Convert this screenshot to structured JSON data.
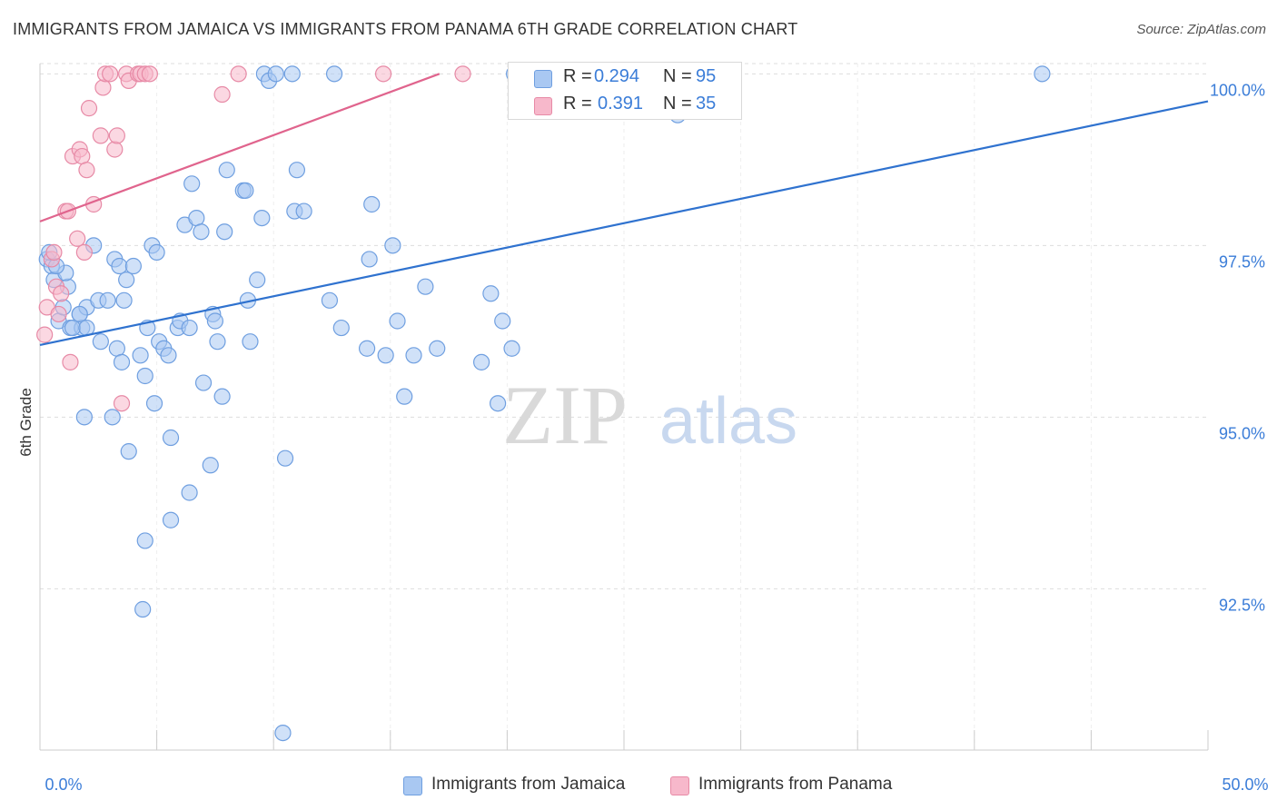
{
  "header": {
    "title": "IMMIGRANTS FROM JAMAICA VS IMMIGRANTS FROM PANAMA 6TH GRADE CORRELATION CHART",
    "source": "Source: ZipAtlas.com"
  },
  "watermark": {
    "zip": "ZIP",
    "atlas": "atlas"
  },
  "legend": {
    "jamaica": {
      "r_label": "R =",
      "r_value": "0.294",
      "n_label": "N =",
      "n_value": "95"
    },
    "panama": {
      "r_label": "R =",
      "r_value": "0.391",
      "n_label": "N =",
      "n_value": "35"
    }
  },
  "bottom_legend": {
    "jamaica": "Immigrants from Jamaica",
    "panama": "Immigrants from Panama"
  },
  "colors": {
    "jamaica_fill": "#a9c8f2",
    "jamaica_stroke": "#6f9fe0",
    "jamaica_line": "#2f72cf",
    "panama_fill": "#f7b8cb",
    "panama_stroke": "#e78aa6",
    "panama_line": "#e0648d",
    "tick_label": "#3b7dd8",
    "grid": "#dddddd"
  },
  "chart_data": {
    "type": "scatter",
    "title": "IMMIGRANTS FROM JAMAICA VS IMMIGRANTS FROM PANAMA 6TH GRADE CORRELATION CHART",
    "xlabel": "",
    "ylabel": "6th Grade",
    "xlim": [
      0,
      50
    ],
    "ylim": [
      90.15,
      100.15
    ],
    "x_tick_labels": [
      "0.0%",
      "50.0%"
    ],
    "y_ticks": [
      92.5,
      95.0,
      97.5,
      100.0
    ],
    "y_tick_labels": [
      "92.5%",
      "95.0%",
      "97.5%",
      "100.0%"
    ],
    "series": [
      {
        "name": "Immigrants from Jamaica",
        "r": 0.294,
        "n": 95,
        "trend": {
          "x": [
            0,
            50
          ],
          "y": [
            96.05,
            99.6
          ]
        },
        "points": [
          [
            0.3,
            97.3
          ],
          [
            0.5,
            97.2
          ],
          [
            0.6,
            97.0
          ],
          [
            0.8,
            96.4
          ],
          [
            1.2,
            96.9
          ],
          [
            1.3,
            96.3
          ],
          [
            1.0,
            96.6
          ],
          [
            1.7,
            96.5
          ],
          [
            1.8,
            96.3
          ],
          [
            2.0,
            96.6
          ],
          [
            2.3,
            97.5
          ],
          [
            2.5,
            96.7
          ],
          [
            2.6,
            96.1
          ],
          [
            2.9,
            96.7
          ],
          [
            3.2,
            97.3
          ],
          [
            3.3,
            96.0
          ],
          [
            3.4,
            97.2
          ],
          [
            3.6,
            96.7
          ],
          [
            3.7,
            97.0
          ],
          [
            4.0,
            97.2
          ],
          [
            4.3,
            95.9
          ],
          [
            4.5,
            95.6
          ],
          [
            4.6,
            96.3
          ],
          [
            4.8,
            97.5
          ],
          [
            4.9,
            95.2
          ],
          [
            5.0,
            97.4
          ],
          [
            5.1,
            96.1
          ],
          [
            5.3,
            96.0
          ],
          [
            5.5,
            95.9
          ],
          [
            5.6,
            94.7
          ],
          [
            5.9,
            96.3
          ],
          [
            6.0,
            96.4
          ],
          [
            6.2,
            97.8
          ],
          [
            6.4,
            96.3
          ],
          [
            6.5,
            98.4
          ],
          [
            6.7,
            97.9
          ],
          [
            6.9,
            97.7
          ],
          [
            7.0,
            95.5
          ],
          [
            7.4,
            96.5
          ],
          [
            7.5,
            96.4
          ],
          [
            7.6,
            96.1
          ],
          [
            7.8,
            95.3
          ],
          [
            7.9,
            97.7
          ],
          [
            8.0,
            98.6
          ],
          [
            8.7,
            98.3
          ],
          [
            8.8,
            98.3
          ],
          [
            8.9,
            96.7
          ],
          [
            9.0,
            96.1
          ],
          [
            9.3,
            97.0
          ],
          [
            9.5,
            97.9
          ],
          [
            9.6,
            100.0
          ],
          [
            9.8,
            99.9
          ],
          [
            10.1,
            100.0
          ],
          [
            10.5,
            94.4
          ],
          [
            10.8,
            100.0
          ],
          [
            10.9,
            98.0
          ],
          [
            11.0,
            98.6
          ],
          [
            11.3,
            98.0
          ],
          [
            12.4,
            96.7
          ],
          [
            12.6,
            100.0
          ],
          [
            12.9,
            96.3
          ],
          [
            14.0,
            96.0
          ],
          [
            14.1,
            97.3
          ],
          [
            14.2,
            98.1
          ],
          [
            14.8,
            95.9
          ],
          [
            15.1,
            97.5
          ],
          [
            15.3,
            96.4
          ],
          [
            15.6,
            95.3
          ],
          [
            16.0,
            95.9
          ],
          [
            16.5,
            96.9
          ],
          [
            17.0,
            96.0
          ],
          [
            18.9,
            95.8
          ],
          [
            19.3,
            96.8
          ],
          [
            19.6,
            95.2
          ],
          [
            19.8,
            96.4
          ],
          [
            20.2,
            96.0
          ],
          [
            20.3,
            100.0
          ],
          [
            27.3,
            99.4
          ],
          [
            42.9,
            100.0
          ],
          [
            10.4,
            90.4
          ],
          [
            4.4,
            92.2
          ],
          [
            4.5,
            93.2
          ],
          [
            5.6,
            93.5
          ],
          [
            6.4,
            93.9
          ],
          [
            7.3,
            94.3
          ],
          [
            3.8,
            94.5
          ],
          [
            1.9,
            95.0
          ],
          [
            3.1,
            95.0
          ],
          [
            1.7,
            96.5
          ],
          [
            1.4,
            96.3
          ],
          [
            0.4,
            97.4
          ],
          [
            1.1,
            97.1
          ],
          [
            2.0,
            96.3
          ],
          [
            3.5,
            95.8
          ],
          [
            0.7,
            97.2
          ]
        ]
      },
      {
        "name": "Immigrants from Panama",
        "r": 0.391,
        "n": 35,
        "trend": {
          "x": [
            0,
            17.1
          ],
          "y": [
            97.85,
            100.0
          ]
        },
        "points": [
          [
            0.2,
            96.2
          ],
          [
            0.3,
            96.6
          ],
          [
            0.5,
            97.3
          ],
          [
            0.6,
            97.4
          ],
          [
            0.7,
            96.9
          ],
          [
            0.8,
            96.5
          ],
          [
            0.9,
            96.8
          ],
          [
            1.1,
            98.0
          ],
          [
            1.2,
            98.0
          ],
          [
            1.3,
            95.8
          ],
          [
            1.4,
            98.8
          ],
          [
            1.6,
            97.6
          ],
          [
            1.7,
            98.9
          ],
          [
            1.8,
            98.8
          ],
          [
            1.9,
            97.4
          ],
          [
            2.0,
            98.6
          ],
          [
            2.1,
            99.5
          ],
          [
            2.3,
            98.1
          ],
          [
            2.6,
            99.1
          ],
          [
            2.7,
            99.8
          ],
          [
            2.8,
            100.0
          ],
          [
            3.0,
            100.0
          ],
          [
            3.2,
            98.9
          ],
          [
            3.3,
            99.1
          ],
          [
            3.5,
            95.2
          ],
          [
            3.7,
            100.0
          ],
          [
            3.8,
            99.9
          ],
          [
            4.2,
            100.0
          ],
          [
            4.3,
            100.0
          ],
          [
            4.5,
            100.0
          ],
          [
            4.7,
            100.0
          ],
          [
            7.8,
            99.7
          ],
          [
            8.5,
            100.0
          ],
          [
            14.7,
            100.0
          ],
          [
            18.1,
            100.0
          ]
        ]
      }
    ]
  }
}
